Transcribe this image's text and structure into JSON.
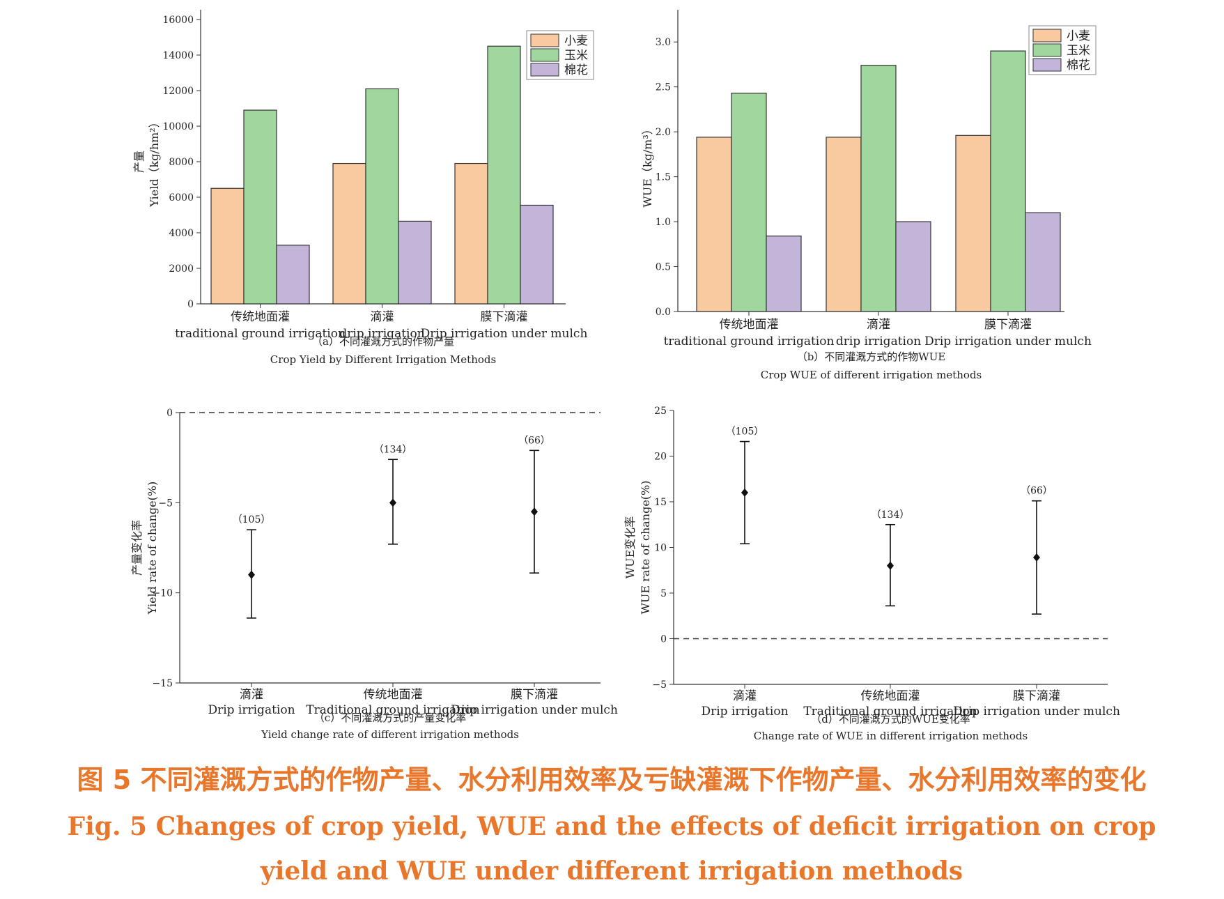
{
  "figure": {
    "caption_cn": "图 5 不同灌溉方式的作物产量、水分利用效率及亏缺灌溉下作物产量、水分利用效率的变化",
    "caption_en_line1": "Fig. 5 Changes of crop yield, WUE and the effects of deficit irrigation on crop",
    "caption_en_line2": "yield and WUE under different irrigation methods",
    "caption_color": "#e8762b"
  },
  "colors": {
    "wheat": "#f9c9a0",
    "maize": "#a0d79e",
    "cotton": "#c3b4d9"
  },
  "chart_data": [
    {
      "id": "a",
      "type": "bar",
      "categories_cn": [
        "传统地面灌",
        "滴灌",
        "膜下滴灌"
      ],
      "categories_en": [
        "traditional ground irrigation",
        "drip irrigation",
        "Drip irrigation under mulch"
      ],
      "series": [
        {
          "name": "小麦",
          "values": [
            6500,
            7900,
            7900
          ]
        },
        {
          "name": "玉米",
          "values": [
            10900,
            12100,
            14500
          ]
        },
        {
          "name": "棉花",
          "values": [
            3300,
            4650,
            5550
          ]
        }
      ],
      "ylabel_cn": "产量",
      "ylabel_en": "Yield（kg/hm²）",
      "ylim": [
        0,
        16000
      ],
      "yticks": [
        0,
        2000,
        4000,
        6000,
        8000,
        10000,
        12000,
        14000,
        16000
      ],
      "caption_cn": "（a）不同灌溉方式的作物产量",
      "caption_en": "Crop Yield by Different Irrigation Methods",
      "legend": "top-right"
    },
    {
      "id": "b",
      "type": "bar",
      "categories_cn": [
        "传统地面灌",
        "滴灌",
        "膜下滴灌"
      ],
      "categories_en": [
        "traditional ground irrigation",
        "drip irrigation",
        "Drip irrigation under mulch"
      ],
      "series": [
        {
          "name": "小麦",
          "values": [
            1.94,
            1.94,
            1.96
          ]
        },
        {
          "name": "玉米",
          "values": [
            2.43,
            2.74,
            2.9
          ]
        },
        {
          "name": "棉花",
          "values": [
            0.84,
            1.0,
            1.1
          ]
        }
      ],
      "ylabel_en": "WUE（kg/m³）",
      "ylim": [
        0,
        3.25
      ],
      "yticks": [
        "0.0",
        "0.5",
        "1.0",
        "1.5",
        "2.0",
        "2.5",
        "3.0"
      ],
      "caption_cn": "（b）不同灌溉方式的作物WUE",
      "caption_en": "Crop WUE of different irrigation methods",
      "legend": "top-right"
    },
    {
      "id": "c",
      "type": "scatter",
      "categories_cn": [
        "滴灌",
        "传统地面灌",
        "膜下滴灌"
      ],
      "categories_en": [
        "Drip irrigation",
        "Traditional ground irrigation",
        "Drip irrigation under mulch"
      ],
      "mean": [
        -9.0,
        -5.0,
        -5.5
      ],
      "lower": [
        -11.4,
        -7.3,
        -8.9
      ],
      "upper": [
        -6.5,
        -2.6,
        -2.1
      ],
      "n_labels": [
        "（105）",
        "（134）",
        "（66）"
      ],
      "ylabel_cn": "产量变化率",
      "ylabel_en": "Yield rate of change(%)",
      "ylim": [
        -15,
        0
      ],
      "yticks": [
        -15,
        -10,
        -5,
        0
      ],
      "reference_line": 0,
      "caption_cn": "（c）不同灌溉方式的产量变化率",
      "caption_en": "Yield change rate of different irrigation methods"
    },
    {
      "id": "d",
      "type": "scatter",
      "categories_cn": [
        "滴灌",
        "传统地面灌",
        "膜下滴灌"
      ],
      "categories_en": [
        "Drip irrigation",
        "Traditional ground irrigation",
        "Drip irrigation under mulch"
      ],
      "mean": [
        16.0,
        8.0,
        8.9
      ],
      "lower": [
        10.4,
        3.6,
        2.7
      ],
      "upper": [
        21.6,
        12.5,
        15.1
      ],
      "n_labels": [
        "（105）",
        "（134）",
        "（66）"
      ],
      "ylabel_cn": "WUE变化率",
      "ylabel_en": "WUE rate of change(%)",
      "ylim": [
        -5,
        25
      ],
      "yticks": [
        -5,
        0,
        5,
        10,
        15,
        20,
        25
      ],
      "reference_line": 0,
      "caption_cn": "（d）不同灌溉方式的WUE变化率",
      "caption_en": "Change rate of WUE in different irrigation methods"
    }
  ]
}
